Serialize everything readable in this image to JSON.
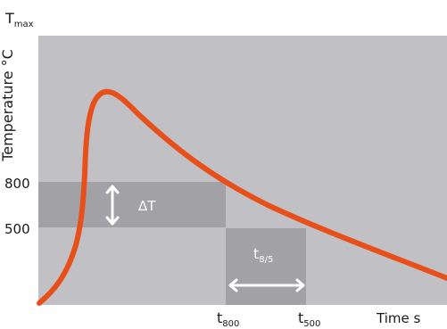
{
  "labels": {
    "tmax": {
      "base": "T",
      "sub": "max"
    },
    "yaxis": "Temperature °C",
    "y800": "800",
    "y500": "500",
    "delta_t": "ΔT",
    "t85": {
      "base": "t",
      "sub": "8/5"
    },
    "t800": {
      "base": "t",
      "sub": "800"
    },
    "t500": {
      "base": "t",
      "sub": "500"
    },
    "xaxis": "Time s"
  },
  "colors": {
    "plot_background": "#c1c0c5",
    "band": "#a2a2a6",
    "curve": "#e8501b",
    "arrow": "#ffffff",
    "text": "#1a1a1a"
  }
}
